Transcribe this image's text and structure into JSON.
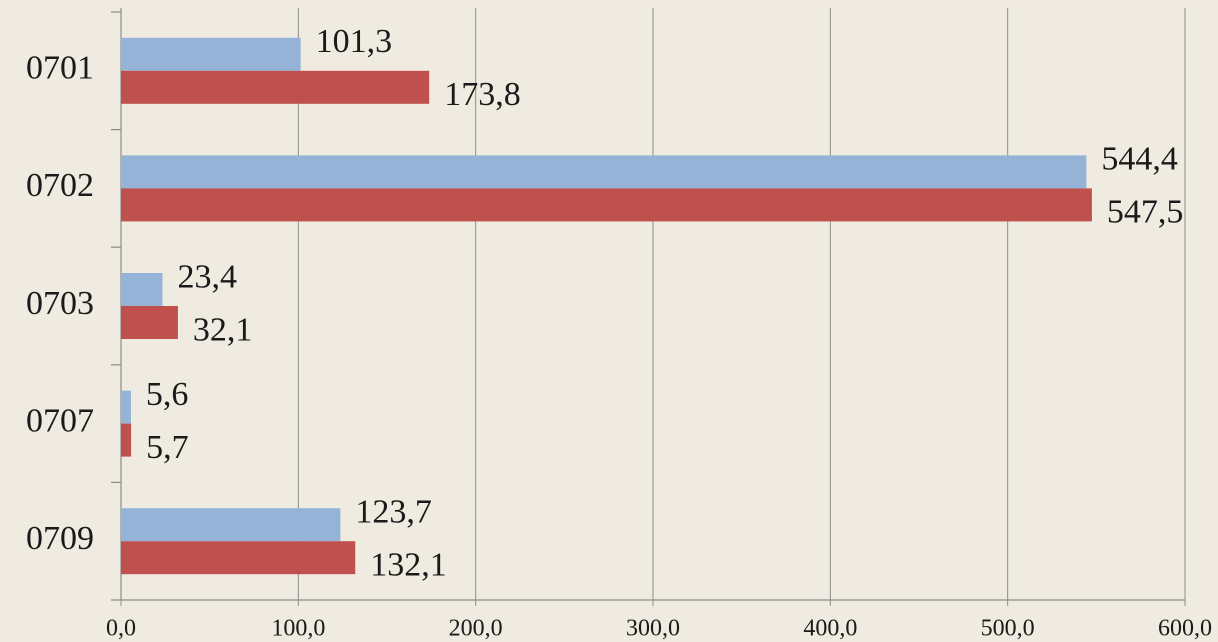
{
  "chart_data": {
    "type": "bar",
    "categories": [
      "0701",
      "0702",
      "0703",
      "0707",
      "0709"
    ],
    "series": [
      {
        "color": "#95b3d7",
        "values": [
          101.3,
          544.4,
          23.4,
          5.6,
          123.7
        ],
        "value_labels": [
          "101,3",
          "544,4",
          "23,4",
          "5,6",
          "123,7"
        ]
      },
      {
        "color": "#c0504d",
        "values": [
          173.8,
          547.5,
          32.1,
          5.7,
          132.1
        ],
        "value_labels": [
          "173,8",
          "547,5",
          "32,1",
          "5,7",
          "132,1"
        ]
      }
    ],
    "xlim": [
      0,
      600
    ],
    "xticks": [
      {
        "value": 0,
        "label": "0,0"
      },
      {
        "value": 100,
        "label": "100,0"
      },
      {
        "value": 200,
        "label": "200,0"
      },
      {
        "value": 300,
        "label": "300,0"
      },
      {
        "value": 400,
        "label": "400,0"
      },
      {
        "value": 500,
        "label": "500,0"
      },
      {
        "value": 600,
        "label": "600,0"
      }
    ],
    "grid": true
  }
}
